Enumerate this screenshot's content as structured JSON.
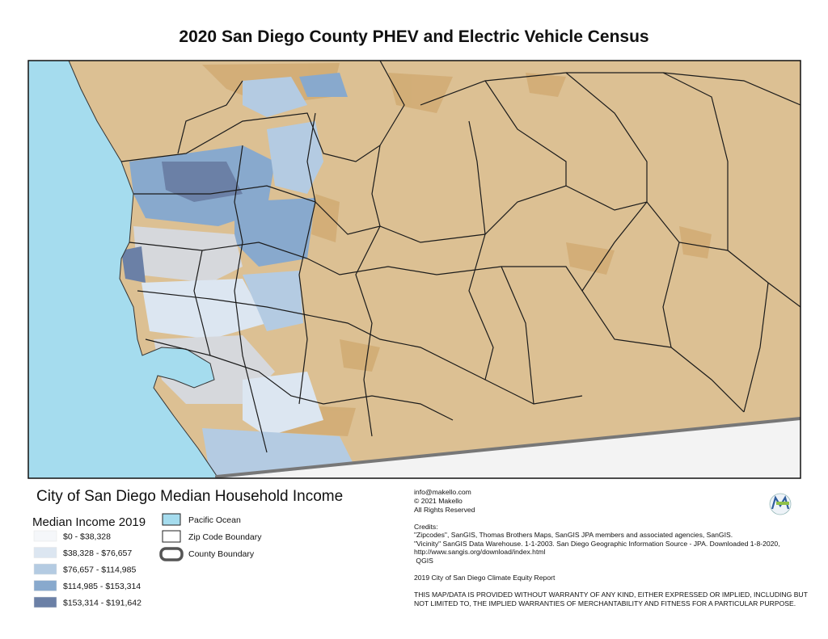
{
  "title": "2020 San Diego County PHEV and Electric Vehicle Census",
  "legend": {
    "title": "City of San Diego Median Household Income",
    "subtitle": "Median Income 2019",
    "classes": [
      {
        "label": "$0 - $38,328",
        "color": "#f5f7fa"
      },
      {
        "label": "$38,328 - $76,657",
        "color": "#dce6f1"
      },
      {
        "label": "$76,657 - $114,985",
        "color": "#b4cbe2"
      },
      {
        "label": "$114,985 - $153,314",
        "color": "#88a9cd"
      },
      {
        "label": "$153,314 - $191,642",
        "color": "#6b80a6"
      }
    ],
    "features": [
      {
        "label": "Pacific Ocean"
      },
      {
        "label": "Zip Code Boundary"
      },
      {
        "label": "County Boundary"
      }
    ]
  },
  "contact": {
    "email": "info@makello.com",
    "copyright": "© 2021 Makello",
    "rights": "All Rights Reserved"
  },
  "credits": {
    "heading": "Credits:",
    "lines": [
      "\"Zipcodes\", SanGIS, Thomas Brothers Maps, SanGIS JPA members and associated agencies, SanGIS.",
      "\"Vicinity\" SanGIS Data Warehouse. 1-1-2003. San Diego Geographic Information Source - JPA. Downloaded 1-8-2020,",
      "http://www.sangis.org/download/index.html",
      " QGIS"
    ],
    "report": "2019 City of San Diego Climate Equity Report",
    "disclaimer": [
      "THIS MAP/DATA IS PROVIDED WITHOUT WARRANTY OF ANY KIND, EITHER EXPRESSED OR IMPLIED, INCLUDING BUT",
      "NOT LIMITED TO, THE IMPLIED WARRANTIES OF MERCHANTABILITY AND FITNESS FOR A PARTICULAR PURPOSE."
    ]
  }
}
